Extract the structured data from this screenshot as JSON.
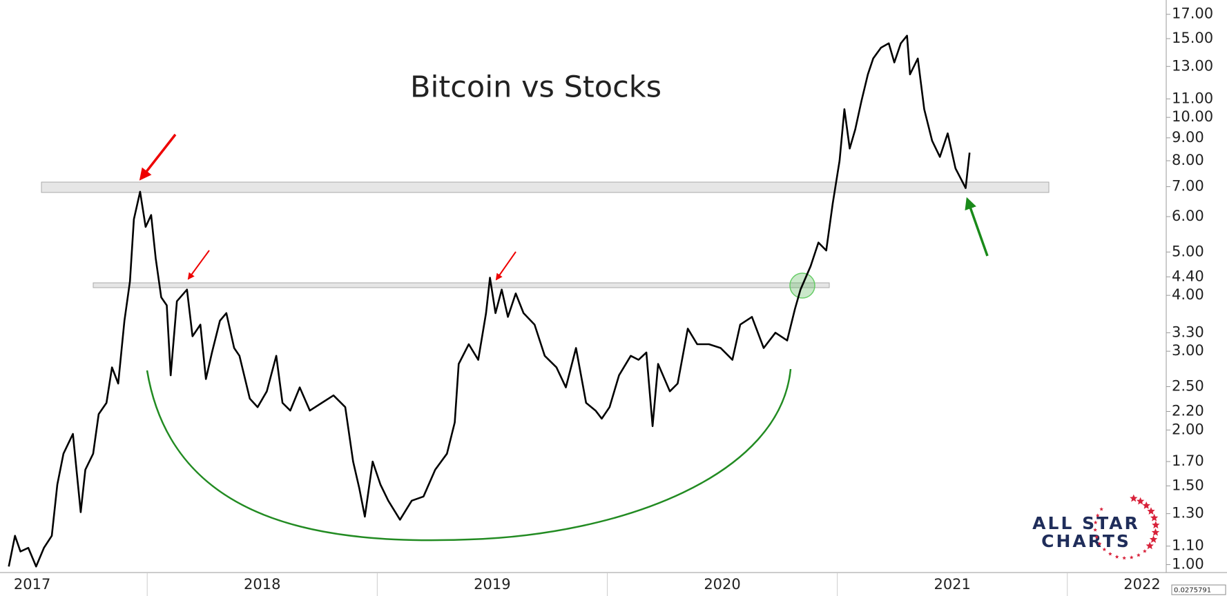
{
  "chart_data": {
    "type": "line",
    "title": "Bitcoin vs Stocks",
    "x": [
      2017.398,
      2017.425,
      2017.449,
      2017.483,
      2017.517,
      2017.551,
      2017.585,
      2017.609,
      2017.636,
      2017.677,
      2017.711,
      2017.731,
      2017.765,
      2017.789,
      2017.823,
      2017.847,
      2017.874,
      2017.901,
      2017.925,
      2017.942,
      2017.969,
      2017.993,
      2018.017,
      2018.037,
      2018.061,
      2018.085,
      2018.102,
      2018.129,
      2018.173,
      2018.197,
      2018.231,
      2018.255,
      2018.282,
      2018.316,
      2018.344,
      2018.378,
      2018.401,
      2018.446,
      2018.48,
      2018.52,
      2018.561,
      2018.588,
      2018.622,
      2018.663,
      2018.707,
      2018.759,
      2018.81,
      2018.861,
      2018.895,
      2018.922,
      2018.946,
      2018.98,
      2019.014,
      2019.048,
      2019.099,
      2019.15,
      2019.201,
      2019.252,
      2019.303,
      2019.337,
      2019.354,
      2019.398,
      2019.439,
      2019.473,
      2019.49,
      2019.514,
      2019.541,
      2019.568,
      2019.602,
      2019.636,
      2019.684,
      2019.728,
      2019.779,
      2019.82,
      2019.864,
      2019.908,
      2019.949,
      2019.976,
      2020.01,
      2020.051,
      2020.102,
      2020.136,
      2020.17,
      2020.197,
      2020.221,
      2020.272,
      2020.306,
      2020.35,
      2020.391,
      2020.442,
      2020.493,
      2020.544,
      2020.578,
      2020.629,
      2020.68,
      2020.731,
      2020.782,
      2020.816,
      2020.84,
      2020.884,
      2020.918,
      2020.952,
      2020.98,
      2021.01,
      2021.031,
      2021.054,
      2021.078,
      2021.105,
      2021.133,
      2021.156,
      2021.19,
      2021.224,
      2021.248,
      2021.276,
      2021.303,
      2021.316,
      2021.35,
      2021.378,
      2021.412,
      2021.446,
      2021.48,
      2021.514,
      2021.558,
      2021.575
    ],
    "values": [
      0.99,
      1.16,
      1.07,
      1.09,
      0.99,
      1.09,
      1.16,
      1.51,
      1.77,
      1.96,
      1.31,
      1.63,
      1.77,
      2.17,
      2.3,
      2.76,
      2.54,
      3.51,
      4.3,
      5.92,
      6.82,
      5.69,
      6.05,
      4.84,
      3.96,
      3.8,
      2.65,
      3.88,
      4.12,
      3.24,
      3.44,
      2.6,
      2.99,
      3.51,
      3.65,
      3.05,
      2.93,
      2.35,
      2.25,
      2.44,
      2.93,
      2.3,
      2.21,
      2.49,
      2.21,
      2.3,
      2.39,
      2.25,
      1.7,
      1.48,
      1.28,
      1.7,
      1.51,
      1.39,
      1.26,
      1.39,
      1.42,
      1.63,
      1.77,
      2.08,
      2.81,
      3.11,
      2.87,
      3.65,
      4.38,
      3.65,
      4.12,
      3.58,
      4.04,
      3.65,
      3.44,
      2.93,
      2.76,
      2.49,
      3.05,
      2.3,
      2.21,
      2.12,
      2.25,
      2.65,
      2.93,
      2.87,
      2.98,
      2.04,
      2.81,
      2.44,
      2.54,
      3.37,
      3.11,
      3.11,
      3.05,
      2.87,
      3.44,
      3.58,
      3.05,
      3.3,
      3.17,
      3.73,
      4.12,
      4.65,
      5.25,
      5.04,
      6.42,
      8.0,
      10.43,
      8.52,
      9.4,
      10.88,
      12.48,
      13.54,
      14.32,
      14.64,
      13.27,
      14.64,
      15.23,
      12.48,
      13.54,
      10.43,
      8.87,
      8.16,
      9.21,
      7.69,
      6.95,
      8.34
    ],
    "color": "#000000",
    "xlim": [
      2017.36,
      2022.43
    ],
    "xticks": [
      2017,
      2018,
      2019,
      2020,
      2021,
      2022
    ],
    "ylim": [
      0.96,
      18.3
    ],
    "log_scale": true,
    "yticks": [
      {
        "value": 1,
        "label": "1.00"
      },
      {
        "value": 1.1,
        "label": "1.10"
      },
      {
        "value": 1.3,
        "label": "1.30"
      },
      {
        "value": 1.5,
        "label": "1.50"
      },
      {
        "value": 1.7,
        "label": "1.70"
      },
      {
        "value": 2,
        "label": "2.00"
      },
      {
        "value": 2.2,
        "label": "2.20"
      },
      {
        "value": 2.5,
        "label": "2.50"
      },
      {
        "value": 3,
        "label": "3.00"
      },
      {
        "value": 3.3,
        "label": "3.30"
      },
      {
        "value": 4,
        "label": "4.00"
      },
      {
        "value": 4.4,
        "label": "4.40"
      },
      {
        "value": 5,
        "label": "5.00"
      },
      {
        "value": 6,
        "label": "6.00"
      },
      {
        "value": 7,
        "label": "7.00"
      },
      {
        "value": 8,
        "label": "8.00"
      },
      {
        "value": 9,
        "label": "9.00"
      },
      {
        "value": 10,
        "label": "10.00"
      },
      {
        "value": 11,
        "label": "11.00"
      },
      {
        "value": 13,
        "label": "13.00"
      },
      {
        "value": 15,
        "label": "15.00"
      },
      {
        "value": 17,
        "label": "17.00"
      }
    ],
    "grid": false
  },
  "logo": [
    "ALL STAR",
    "CHARTS"
  ],
  "cursor_value": "0.0275791"
}
